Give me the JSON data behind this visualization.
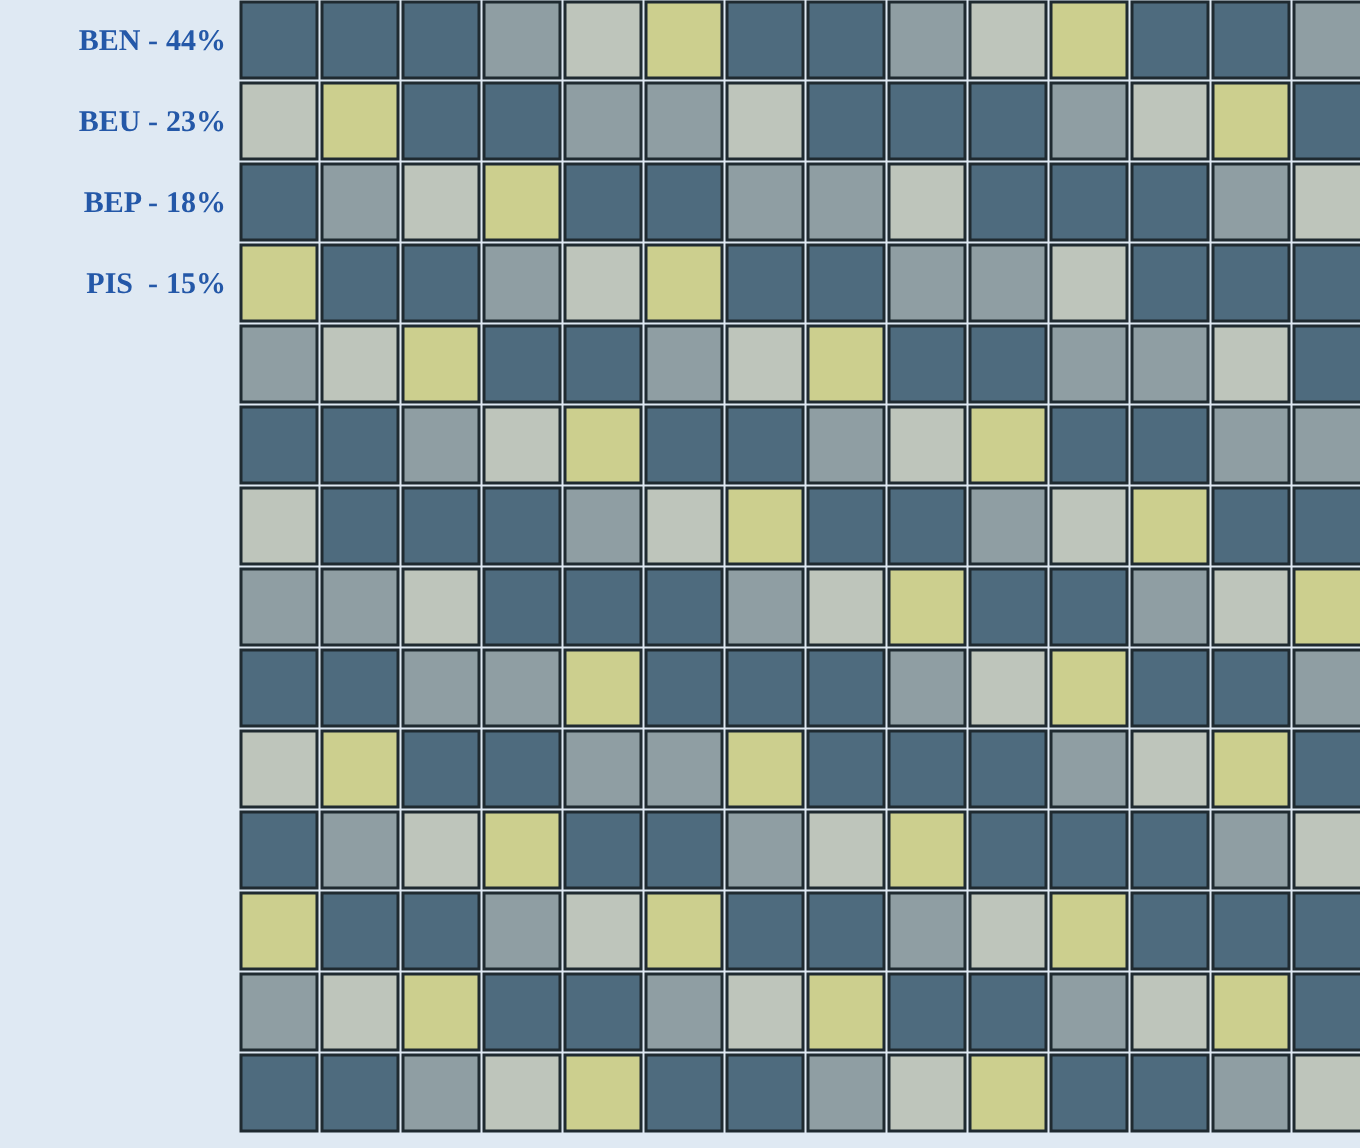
{
  "chart_data": {
    "type": "other",
    "categories": [
      "BEN -",
      "BEU -",
      "BEP -",
      "PIS  -"
    ],
    "values": [
      44,
      23,
      18,
      15
    ],
    "value_labels": [
      "44%",
      "23%",
      "18%",
      "15%"
    ],
    "colors": [
      "#4e6b7e",
      "#8f9ea3",
      "#bec5bb",
      "#cccf8e"
    ]
  }
}
